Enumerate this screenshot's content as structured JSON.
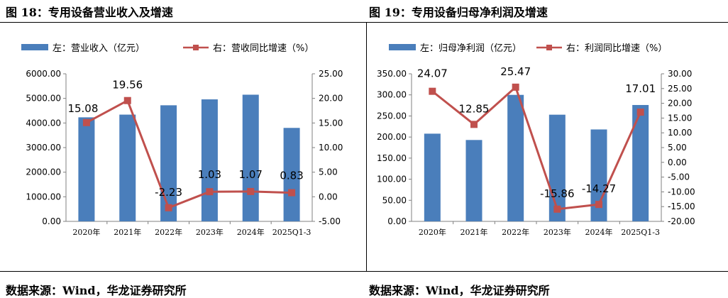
{
  "left_title": "图 18：专用设备营业收入及增速",
  "right_title": "图 19：专用设备归母净利润及增速",
  "source_left": "数据来源：Wind，华龙证券研究所",
  "source_right": "数据来源：Wind，华龙证券研究所",
  "colors": {
    "bar": "#4A7EBB",
    "line": "#C0504D"
  },
  "chart_data": [
    {
      "type": "bar",
      "title": "图 18：专用设备营业收入及增速",
      "categories": [
        "2020年",
        "2021年",
        "2022年",
        "2023年",
        "2024年",
        "2025Q1-3"
      ],
      "series": [
        {
          "name": "左：营业收入（亿元）",
          "type": "bar",
          "axis": "left",
          "values": [
            4230,
            4340,
            4720,
            4960,
            5150,
            3800
          ]
        },
        {
          "name": "右：营收同比增速（%）",
          "type": "line",
          "axis": "right",
          "values": [
            15.08,
            19.56,
            -2.23,
            1.03,
            1.07,
            0.83
          ]
        }
      ],
      "data_labels": [
        "15.08",
        "19.56",
        "-2.23",
        "1.03",
        "1.07",
        "0.83"
      ],
      "y_left": {
        "min": 0,
        "max": 6000,
        "step": 1000,
        "tick_labels": [
          "0.00",
          "1000.00",
          "2000.00",
          "3000.00",
          "4000.00",
          "5000.00",
          "6000.00"
        ]
      },
      "y_right": {
        "min": -5,
        "max": 25,
        "step": 5,
        "tick_labels": [
          "-5.00",
          "0.00",
          "5.00",
          "10.00",
          "15.00",
          "20.00",
          "25.00"
        ]
      },
      "legend": [
        "左：营业收入（亿元）",
        "右：营收同比增速（%）"
      ],
      "legend_position": "top"
    },
    {
      "type": "bar",
      "title": "图 19：专用设备归母净利润及增速",
      "categories": [
        "2020年",
        "2021年",
        "2022年",
        "2023年",
        "2024年",
        "2025Q1-3"
      ],
      "series": [
        {
          "name": "左：归母净利润（亿元）",
          "type": "bar",
          "axis": "left",
          "values": [
            208,
            193,
            300,
            253,
            218,
            276
          ]
        },
        {
          "name": "右：利润同比增速（%）",
          "type": "line",
          "axis": "right",
          "values": [
            24.07,
            12.85,
            25.47,
            -15.86,
            -14.27,
            17.01
          ]
        }
      ],
      "data_labels": [
        "24.07",
        "12.85",
        "25.47",
        "-15.86",
        "-14.27",
        "17.01"
      ],
      "y_left": {
        "min": 0,
        "max": 350,
        "step": 50,
        "tick_labels": [
          "0.00",
          "50.00",
          "100.00",
          "150.00",
          "200.00",
          "250.00",
          "300.00",
          "350.00"
        ]
      },
      "y_right": {
        "min": -20,
        "max": 30,
        "step": 5,
        "tick_labels": [
          "-20.00",
          "-15.00",
          "-10.00",
          "-5.00",
          "0.00",
          "5.00",
          "10.00",
          "15.00",
          "20.00",
          "25.00",
          "30.00"
        ]
      },
      "legend": [
        "左：归母净利润（亿元）",
        "右：利润同比增速（%）"
      ],
      "legend_position": "top"
    }
  ]
}
